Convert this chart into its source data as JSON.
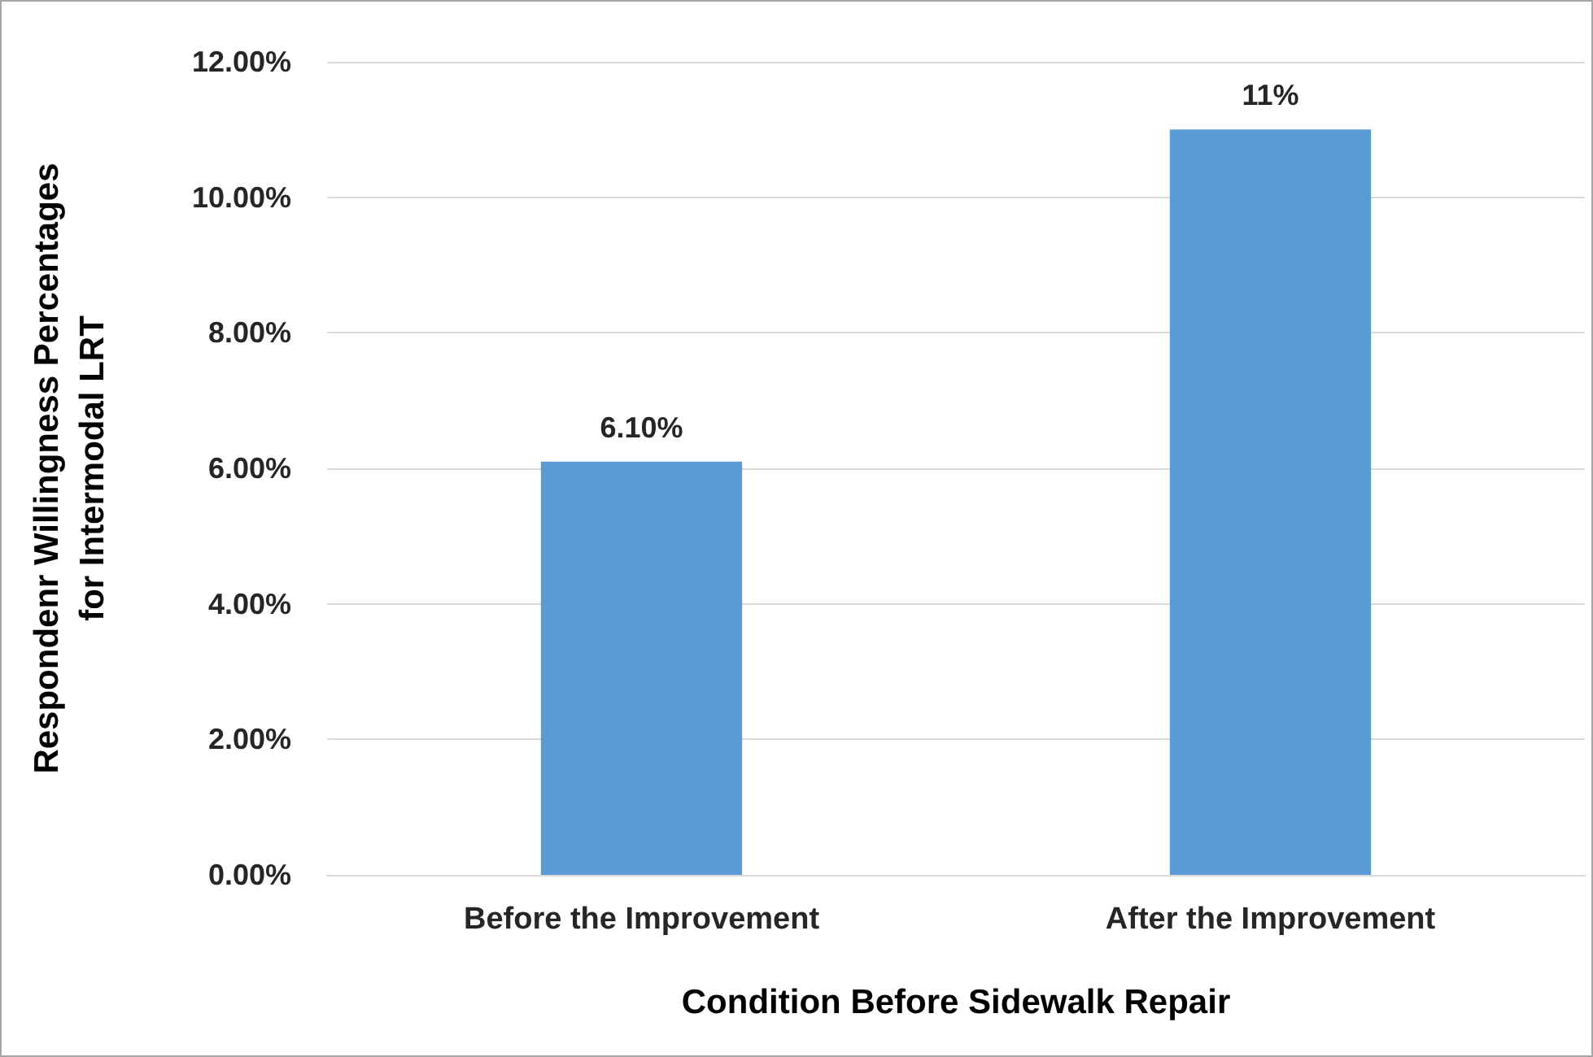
{
  "chart_data": {
    "type": "bar",
    "categories": [
      "Before the Improvement",
      "After the Improvement"
    ],
    "series": [
      {
        "color": "#5b9bd5",
        "values": [
          6.1,
          11
        ],
        "value_labels": [
          "6.10%",
          "11%"
        ]
      }
    ],
    "xlabel": "Condition Before Sidewalk Repair",
    "ylabel": "Respondenr Willingness Percentages\nfor Intermodal LRT",
    "ylim": [
      0,
      12
    ],
    "yticks": [
      {
        "value": 0,
        "label": "0.00%"
      },
      {
        "value": 2,
        "label": "2.00%"
      },
      {
        "value": 4,
        "label": "4.00%"
      },
      {
        "value": 6,
        "label": "6.00%"
      },
      {
        "value": 8,
        "label": "8.00%"
      },
      {
        "value": 10,
        "label": "10.00%"
      },
      {
        "value": 12,
        "label": "12.00%"
      }
    ],
    "grid": "y"
  }
}
